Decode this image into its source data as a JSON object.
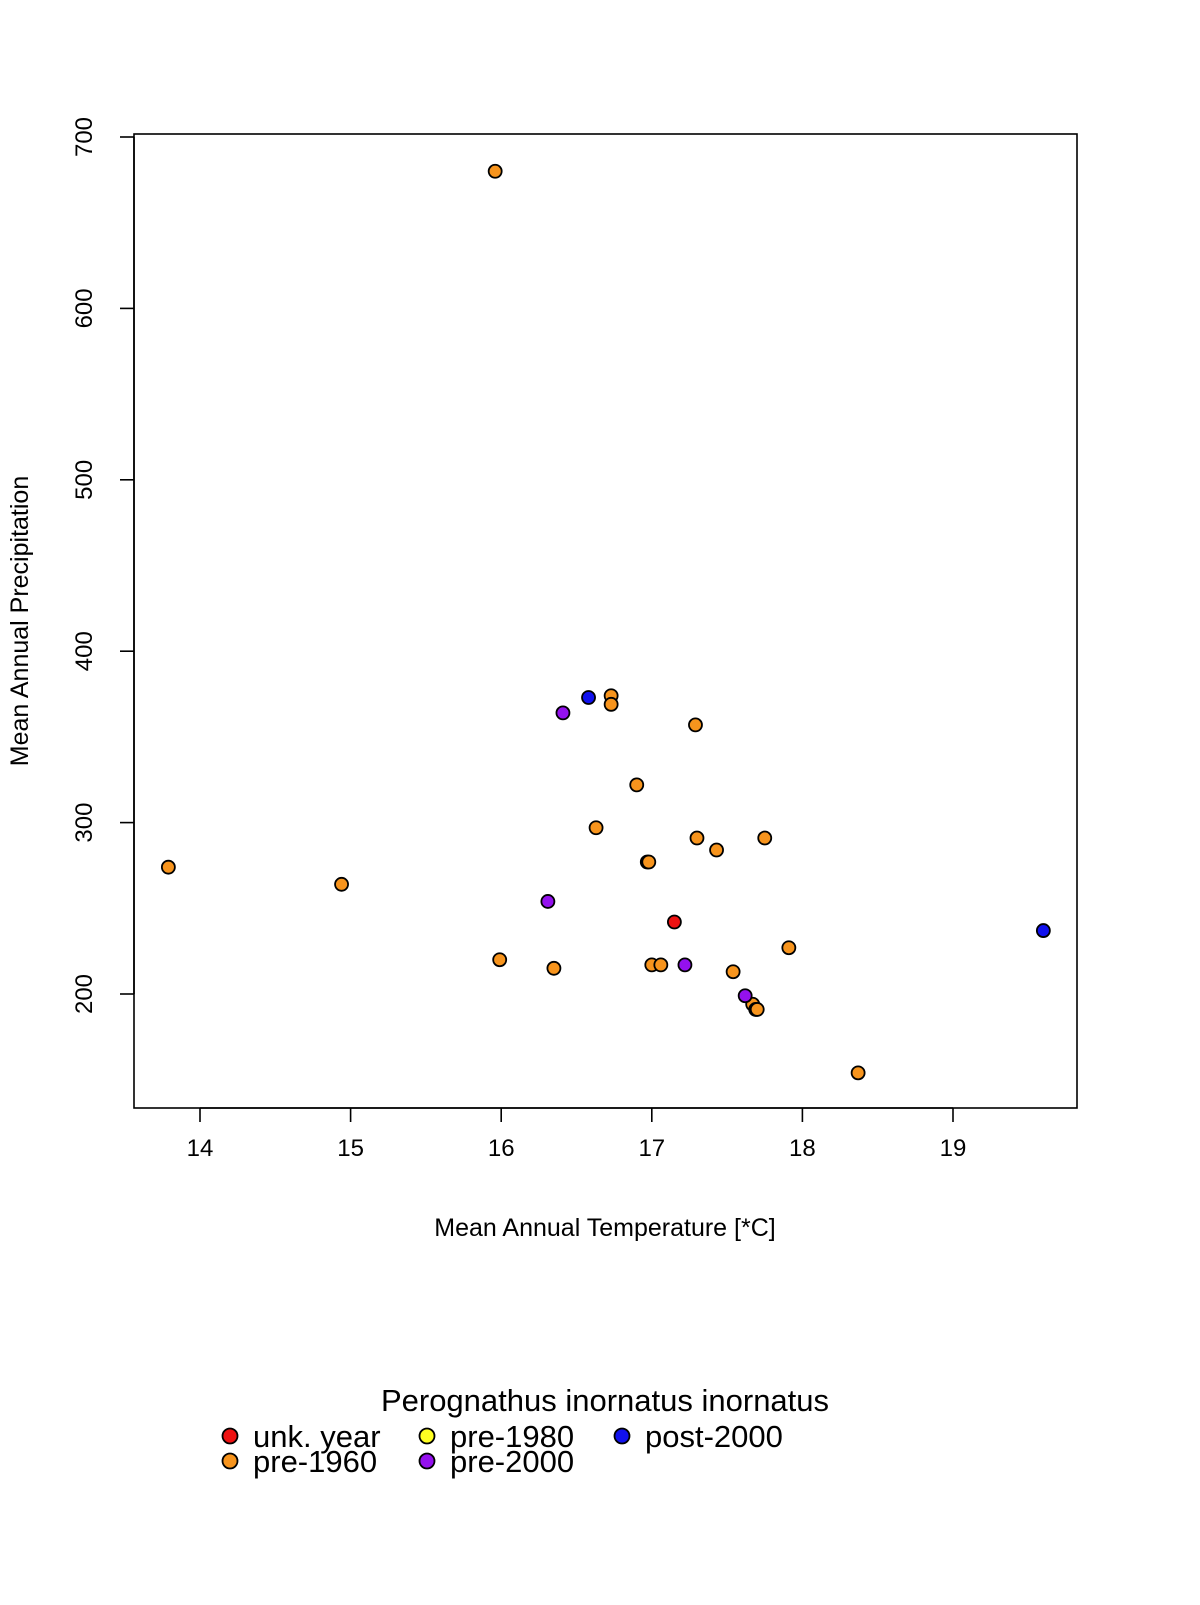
{
  "chart_data": {
    "type": "scatter",
    "title": "",
    "xlabel": "Mean Annual Temperature [*C]",
    "ylabel": "Mean Annual Precipitation",
    "xlim": [
      13.56,
      19.84
    ],
    "ylim": [
      132,
      700
    ],
    "x_ticks": [
      14,
      15,
      16,
      17,
      18,
      19
    ],
    "x_tick_labels": [
      "14",
      "15",
      "16",
      "17",
      "18",
      "19"
    ],
    "y_ticks": [
      200,
      300,
      400,
      500,
      600,
      700
    ],
    "y_tick_labels": [
      "200",
      "300",
      "400",
      "500",
      "600",
      "700"
    ],
    "grid": false,
    "legend": {
      "title": "Perognathus inornatus inornatus",
      "placement": "bottom",
      "entries": [
        {
          "label": "unk. year",
          "color": "#ee1111"
        },
        {
          "label": "pre-1960",
          "color": "#f7941d"
        },
        {
          "label": "pre-1980",
          "color": "#ffff22"
        },
        {
          "label": "pre-2000",
          "color": "#9411ee"
        },
        {
          "label": "post-2000",
          "color": "#1111ee"
        }
      ]
    },
    "series": [
      {
        "name": "unk. year",
        "color": "#ee1111",
        "points": [
          [
            17.15,
            242
          ]
        ]
      },
      {
        "name": "pre-1960",
        "color": "#f7941d",
        "points": [
          [
            15.96,
            680
          ],
          [
            16.73,
            374
          ],
          [
            16.73,
            369
          ],
          [
            17.29,
            357
          ],
          [
            16.9,
            322
          ],
          [
            16.63,
            297
          ],
          [
            16.97,
            277
          ],
          [
            16.98,
            277
          ],
          [
            17.3,
            291
          ],
          [
            17.75,
            291
          ],
          [
            17.43,
            284
          ],
          [
            13.79,
            274
          ],
          [
            14.94,
            264
          ],
          [
            17.91,
            227
          ],
          [
            15.99,
            220
          ],
          [
            16.35,
            215
          ],
          [
            17.0,
            217
          ],
          [
            17.06,
            217
          ],
          [
            17.54,
            213
          ],
          [
            17.67,
            194
          ],
          [
            17.69,
            191
          ],
          [
            17.7,
            191
          ],
          [
            18.37,
            154
          ]
        ]
      },
      {
        "name": "pre-1980",
        "color": "#ffff22",
        "points": []
      },
      {
        "name": "pre-2000",
        "color": "#9411ee",
        "points": [
          [
            16.41,
            364
          ],
          [
            16.31,
            254
          ],
          [
            17.22,
            217
          ],
          [
            17.62,
            199
          ]
        ]
      },
      {
        "name": "post-2000",
        "color": "#1111ee",
        "points": [
          [
            16.58,
            373
          ],
          [
            19.6,
            237
          ]
        ]
      }
    ]
  }
}
